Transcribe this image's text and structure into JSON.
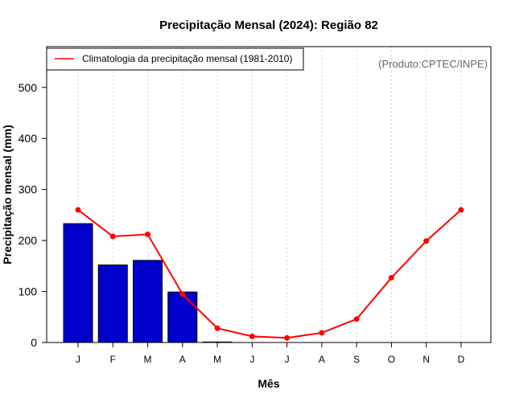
{
  "chart_data": {
    "type": "bar",
    "title": "Precipitação Mensal (2024): Região 82",
    "xlabel": "Mês",
    "ylabel": "Precipitação mensal (mm)",
    "source_note": "(Produto:CPTEC/INPE)",
    "categories": [
      "J",
      "F",
      "M",
      "A",
      "M",
      "J",
      "J",
      "A",
      "S",
      "O",
      "N",
      "D"
    ],
    "ylim": [
      0,
      580
    ],
    "yticks": [
      0,
      100,
      200,
      300,
      400,
      500
    ],
    "bar_series": {
      "name": "2024",
      "color": "#0000cc",
      "values": [
        233,
        152,
        161,
        99,
        1,
        null,
        null,
        null,
        null,
        null,
        null,
        null
      ]
    },
    "line_series": {
      "name": "Climatologia da precipitação mensal (1981-2010)",
      "color": "#ff0000",
      "values": [
        260,
        208,
        212,
        95,
        28,
        12,
        9,
        19,
        46,
        127,
        199,
        260
      ]
    },
    "legend_position": "top-left",
    "grid": "vertical-dotted"
  }
}
